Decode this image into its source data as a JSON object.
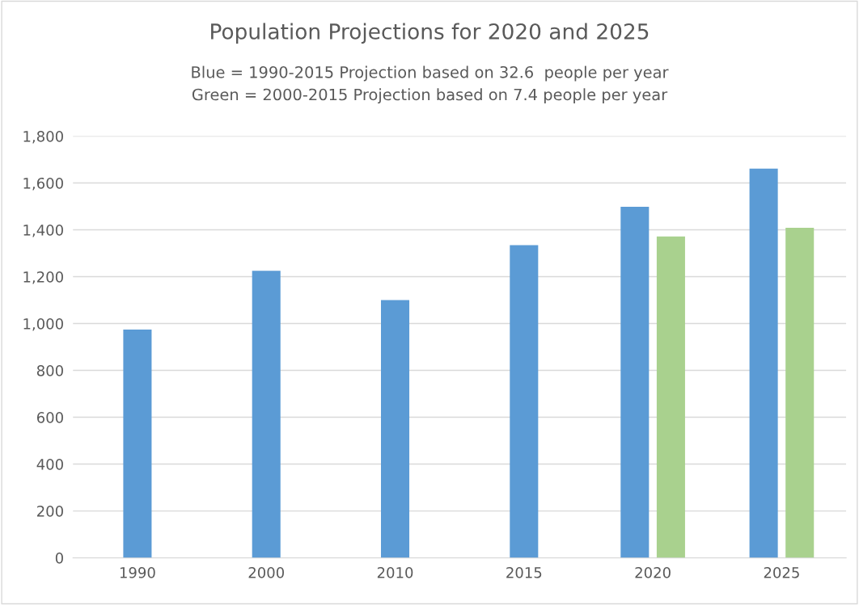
{
  "chart_data": {
    "type": "bar",
    "title": "Population Projections for 2020 and 2025",
    "subtitle": "Blue = 1990-2015 Projection based on 32.6  people per year\nGreen = 2000-2015 Projection based on 7.4 people per year",
    "categories": [
      "1990",
      "2000",
      "2010",
      "2015",
      "2020",
      "2025"
    ],
    "series": [
      {
        "color": "#5b9bd5",
        "values": [
          974,
          1225,
          1100,
          1335,
          1498,
          1661
        ]
      },
      {
        "color": "#a9d18e",
        "values": [
          null,
          null,
          null,
          null,
          1372,
          1409
        ]
      }
    ],
    "ylim": [
      0,
      1800
    ],
    "yticks": [
      {
        "value": 0,
        "label": "0"
      },
      {
        "value": 200,
        "label": "200"
      },
      {
        "value": 400,
        "label": "400"
      },
      {
        "value": 600,
        "label": "600"
      },
      {
        "value": 800,
        "label": "800"
      },
      {
        "value": 1000,
        "label": "1,000"
      },
      {
        "value": 1200,
        "label": "1,200"
      },
      {
        "value": 1400,
        "label": "1,400"
      },
      {
        "value": 1600,
        "label": "1,600"
      },
      {
        "value": 1800,
        "label": "1,800"
      }
    ],
    "grid": "y"
  }
}
